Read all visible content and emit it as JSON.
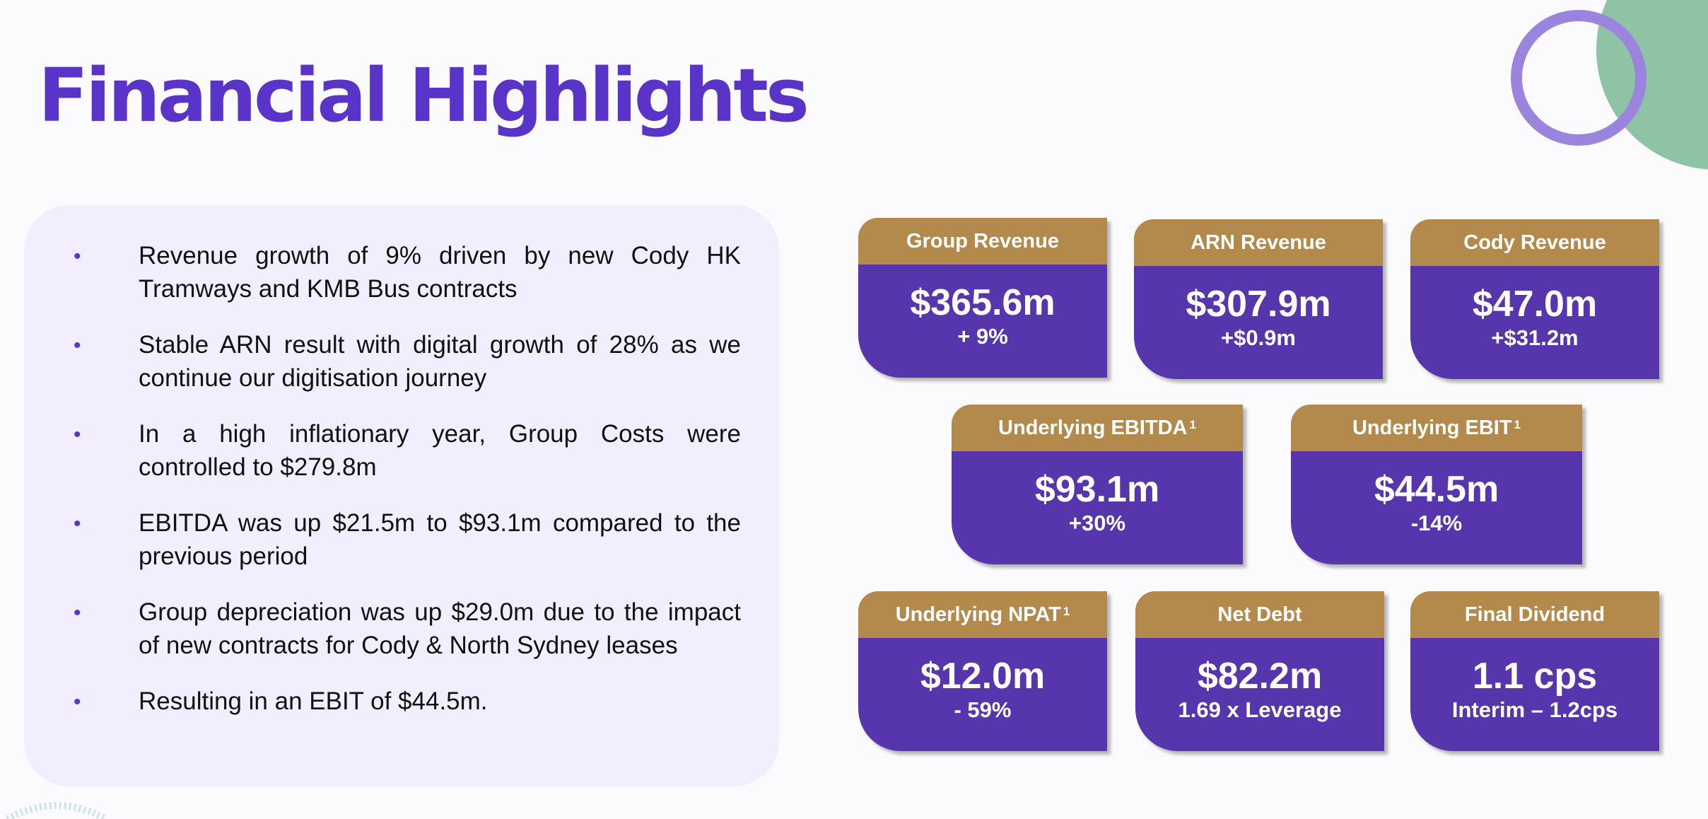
{
  "title": "Financial Highlights",
  "colors": {
    "title": "#5a34c8",
    "card_head": "#b38a4b",
    "card_body": "#5635ad",
    "panel": "#f2eefd",
    "deco_green": "#8fc3a5",
    "deco_ring": "#9b84de"
  },
  "bullets": [
    "Revenue growth of 9% driven by new Cody HK Tramways and KMB Bus contracts",
    "Stable ARN result with digital growth of 28% as we continue our digitisation journey",
    "In a high inflationary year, Group Costs  were controlled to $279.8m",
    "EBITDA was up $21.5m to $93.1m compared to the previous period",
    "Group depreciation was up $29.0m due to the impact of new contracts for Cody & North Sydney leases",
    "Resulting in an EBIT of $44.5m."
  ],
  "cards": [
    {
      "label": "Group Revenue",
      "sup": "",
      "value": "$365.6m",
      "sub": "+ 9%"
    },
    {
      "label": "ARN Revenue",
      "sup": "",
      "value": "$307.9m",
      "sub": "+$0.9m"
    },
    {
      "label": "Cody Revenue",
      "sup": "",
      "value": "$47.0m",
      "sub": "+$31.2m"
    },
    {
      "label": "Underlying EBITDA",
      "sup": "1",
      "value": "$93.1m",
      "sub": "+30%"
    },
    {
      "label": "Underlying EBIT",
      "sup": "1",
      "value": "$44.5m",
      "sub": "-14%"
    },
    {
      "label": "Underlying NPAT",
      "sup": "1",
      "value": "$12.0m",
      "sub": "- 59%"
    },
    {
      "label": "Net Debt",
      "sup": "",
      "value": "$82.2m",
      "sub": "1.69 x Leverage"
    },
    {
      "label": "Final Dividend",
      "sup": "",
      "value": "1.1 cps",
      "sub": "Interim – 1.2cps"
    }
  ]
}
